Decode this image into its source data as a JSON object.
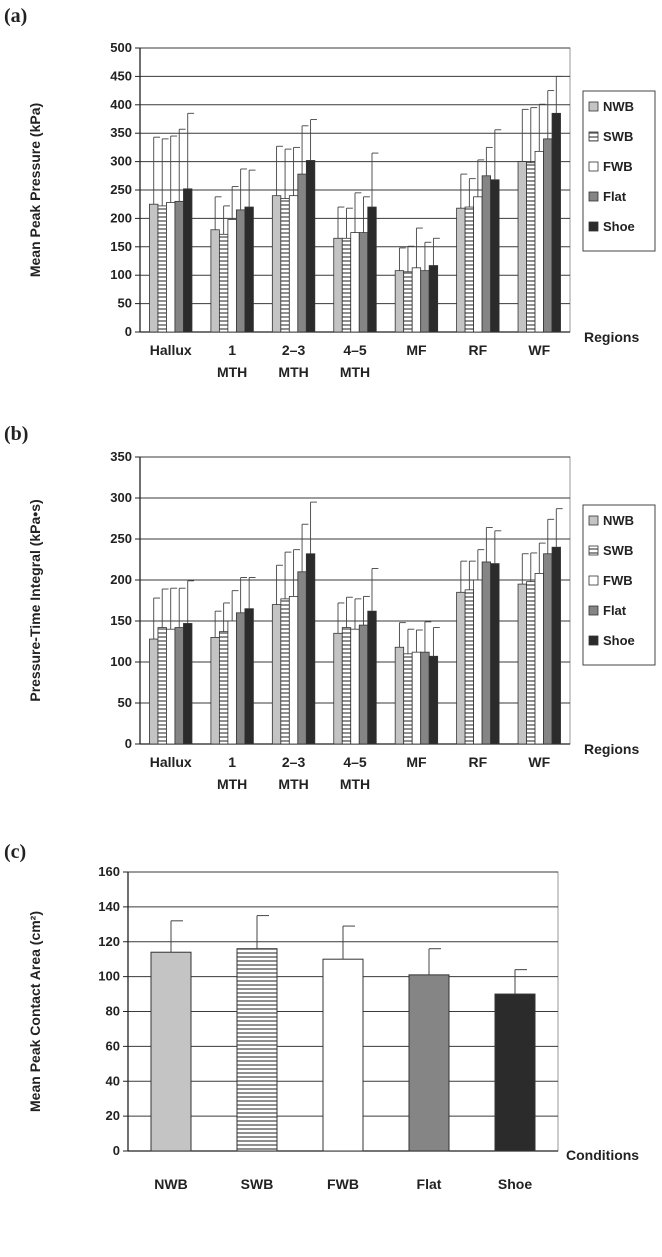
{
  "chart_data": [
    {
      "panel": "(a)",
      "type": "bar",
      "ylabel": "Mean Peak Pressure (kPa)",
      "xlabel": "Regions",
      "ylim": [
        0,
        500
      ],
      "yticks": [
        0,
        50,
        100,
        150,
        200,
        250,
        300,
        350,
        400,
        450,
        500
      ],
      "grid": true,
      "legend_position": "right",
      "categories": [
        [
          "Hallux"
        ],
        [
          "1",
          "MTH"
        ],
        [
          "2–3",
          "MTH"
        ],
        [
          "4–5",
          "MTH"
        ],
        [
          "MF"
        ],
        [
          "RF"
        ],
        [
          "WF"
        ]
      ],
      "series": [
        {
          "name": "NWB",
          "values": [
            225,
            180,
            240,
            165,
            108,
            218,
            300
          ],
          "errors": [
            118,
            58,
            87,
            55,
            40,
            60,
            92
          ]
        },
        {
          "name": "SWB",
          "values": [
            222,
            172,
            235,
            165,
            106,
            220,
            298
          ],
          "errors": [
            118,
            50,
            87,
            53,
            45,
            50,
            97
          ]
        },
        {
          "name": "FWB",
          "values": [
            228,
            198,
            240,
            175,
            113,
            238,
            318
          ],
          "errors": [
            117,
            58,
            85,
            70,
            70,
            65,
            83
          ]
        },
        {
          "name": "Flat",
          "values": [
            230,
            215,
            278,
            175,
            108,
            275,
            340
          ],
          "errors": [
            127,
            72,
            85,
            63,
            50,
            50,
            85
          ]
        },
        {
          "name": "Shoe",
          "values": [
            252,
            220,
            302,
            220,
            117,
            268,
            385
          ],
          "errors": [
            133,
            65,
            72,
            95,
            48,
            88,
            65
          ]
        }
      ]
    },
    {
      "panel": "(b)",
      "type": "bar",
      "ylabel": "Pressure-Time Integral (kPa•s)",
      "xlabel": "Regions",
      "ylim": [
        0,
        350
      ],
      "yticks": [
        0,
        50,
        100,
        150,
        200,
        250,
        300,
        350
      ],
      "grid": true,
      "legend_position": "right",
      "categories": [
        [
          "Hallux"
        ],
        [
          "1",
          "MTH"
        ],
        [
          "2–3",
          "MTH"
        ],
        [
          "4–5",
          "MTH"
        ],
        [
          "MF"
        ],
        [
          "RF"
        ],
        [
          "WF"
        ]
      ],
      "series": [
        {
          "name": "NWB",
          "values": [
            128,
            130,
            170,
            135,
            118,
            185,
            195
          ],
          "errors": [
            50,
            32,
            48,
            37,
            30,
            38,
            37
          ]
        },
        {
          "name": "SWB",
          "values": [
            142,
            137,
            177,
            142,
            110,
            188,
            198
          ],
          "errors": [
            47,
            35,
            57,
            37,
            30,
            35,
            35
          ]
        },
        {
          "name": "FWB",
          "values": [
            140,
            150,
            180,
            140,
            112,
            200,
            208
          ],
          "errors": [
            50,
            37,
            57,
            37,
            27,
            37,
            37
          ]
        },
        {
          "name": "Flat",
          "values": [
            142,
            160,
            210,
            145,
            112,
            222,
            232
          ],
          "errors": [
            48,
            43,
            58,
            35,
            37,
            42,
            42
          ]
        },
        {
          "name": "Shoe",
          "values": [
            147,
            165,
            232,
            162,
            107,
            220,
            240
          ],
          "errors": [
            52,
            38,
            63,
            52,
            35,
            40,
            47
          ]
        }
      ]
    },
    {
      "panel": "(c)",
      "type": "bar",
      "ylabel": "Mean Peak Contact Area (cm²)",
      "xlabel": "Conditions",
      "ylim": [
        0,
        160
      ],
      "yticks": [
        0,
        20,
        40,
        60,
        80,
        100,
        120,
        140,
        160
      ],
      "grid": true,
      "categories": [
        "NWB",
        "SWB",
        "FWB",
        "Flat",
        "Shoe"
      ],
      "values": [
        114,
        116,
        110,
        101,
        90
      ],
      "errors": [
        18,
        19,
        19,
        15,
        14
      ]
    }
  ],
  "style": {
    "series_fills": {
      "NWB": "#c4c4c4",
      "SWB": "hatch",
      "FWB": "#ffffff",
      "Flat": "#858585",
      "Shoe": "#2b2b2b"
    },
    "hatch_color": "#555555"
  }
}
